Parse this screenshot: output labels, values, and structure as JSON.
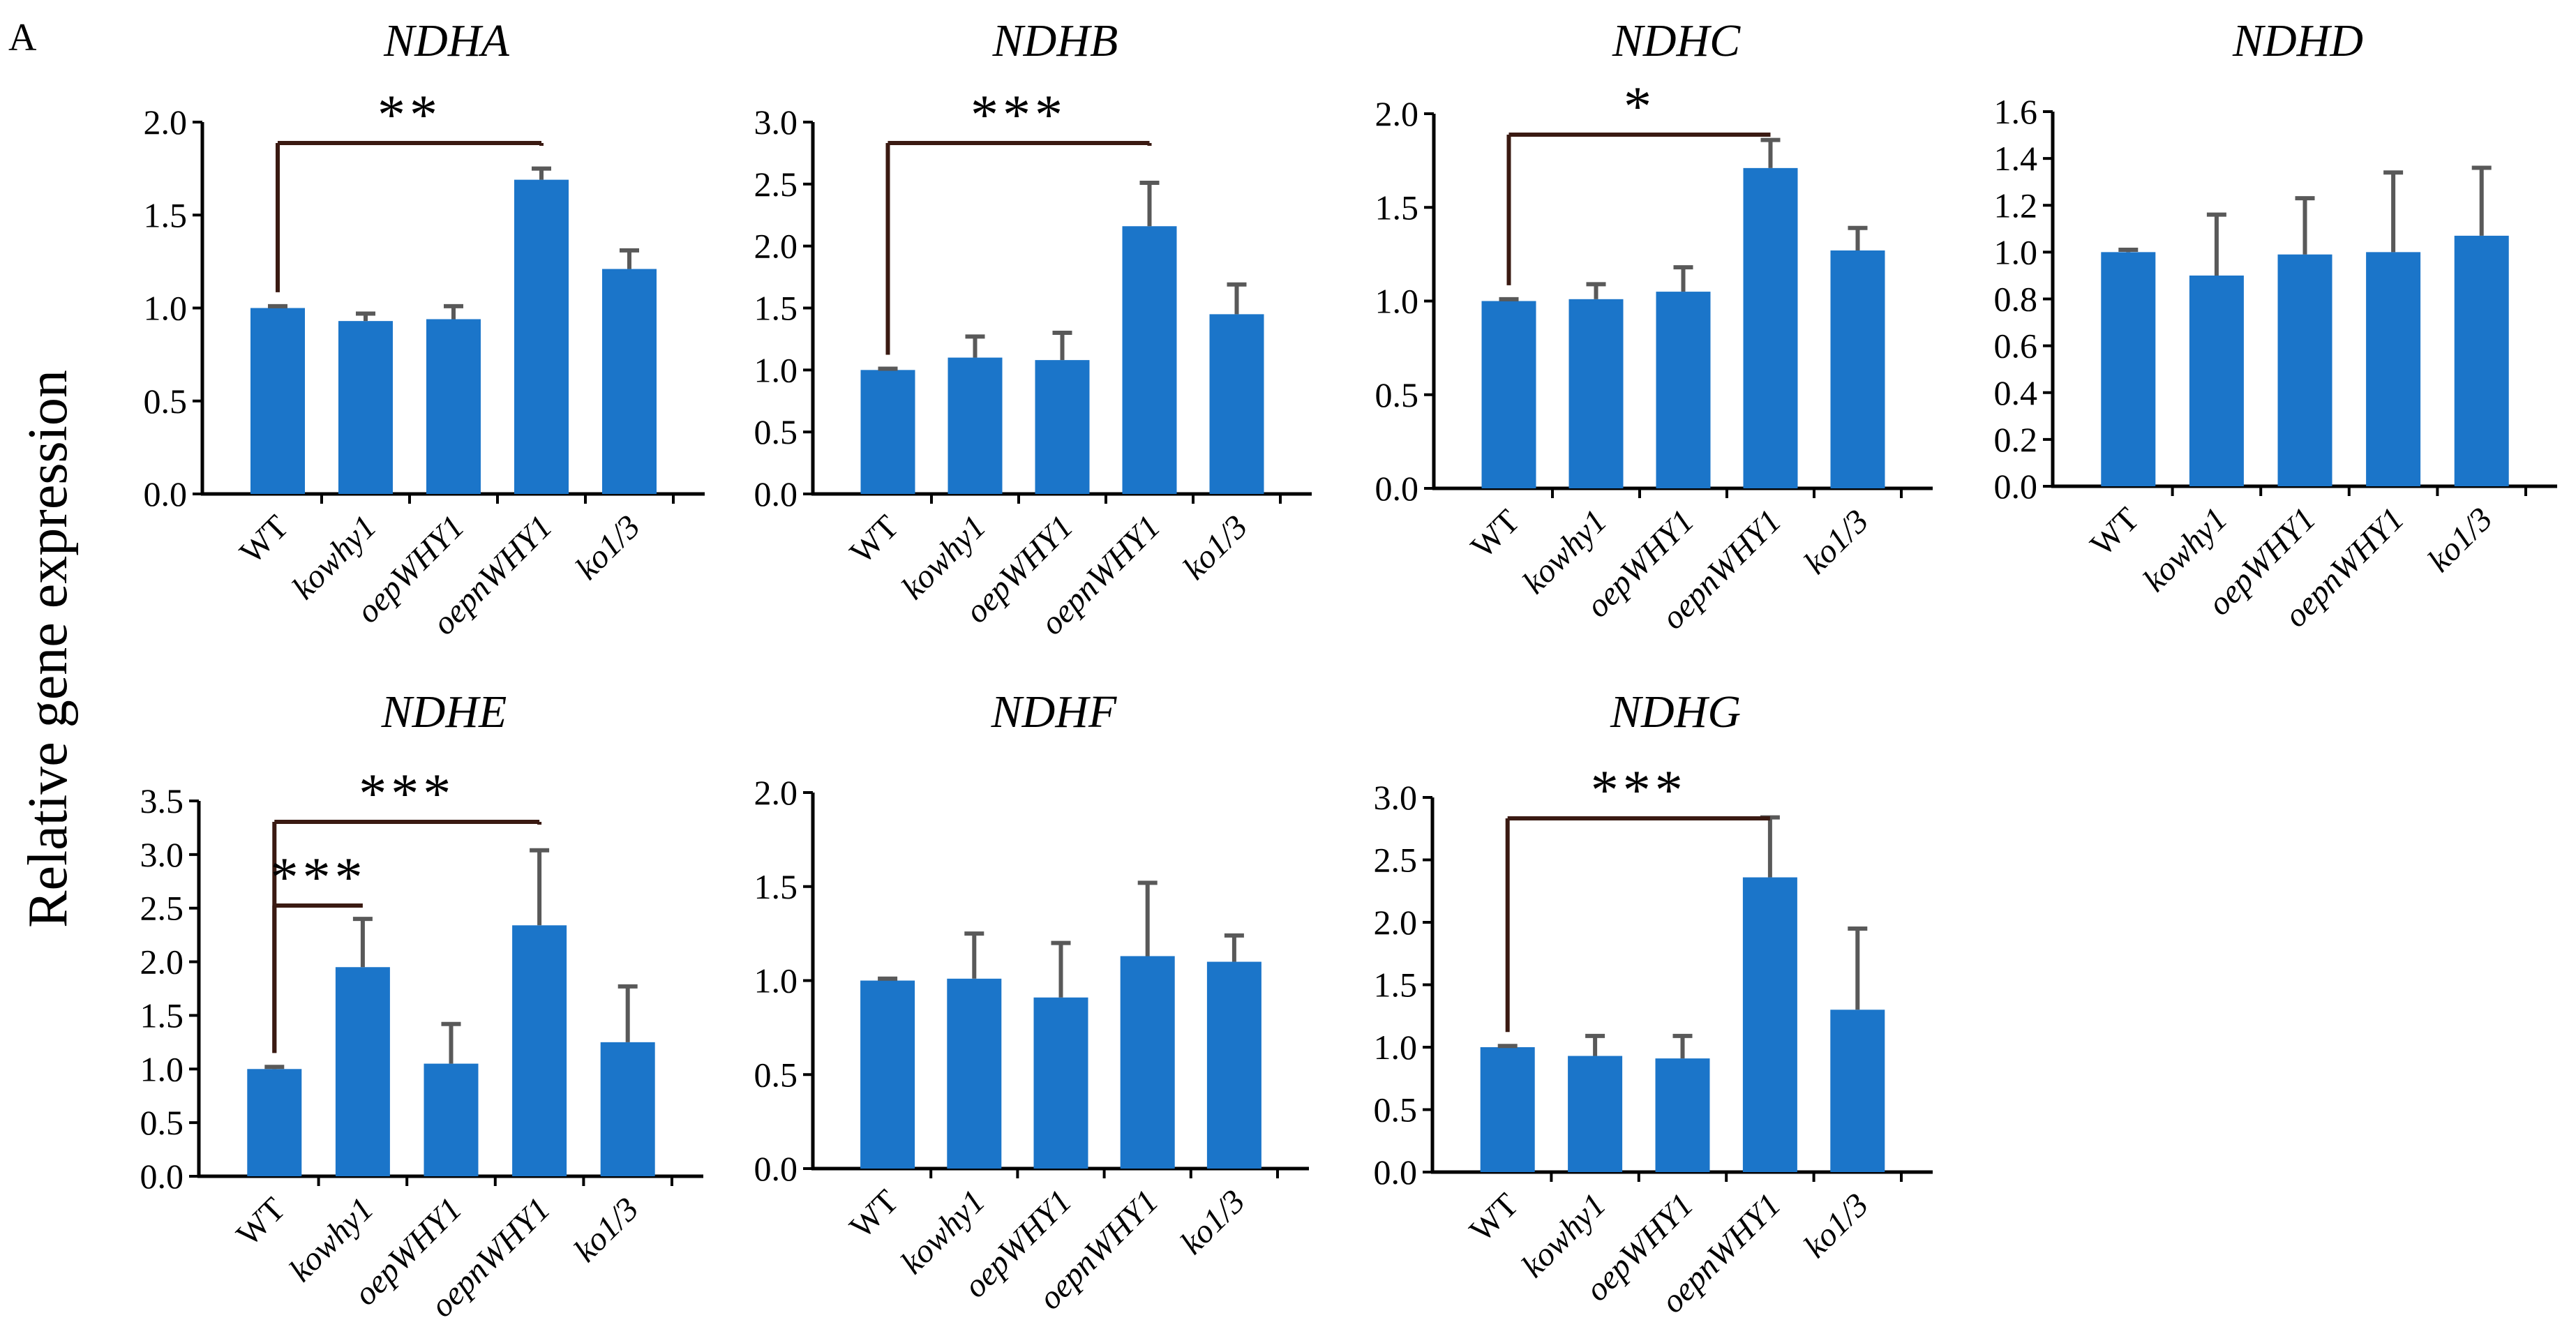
{
  "figure": {
    "panel_letter": "A",
    "y_axis_label": "Relative gene expression",
    "bar_color": "#1b75c9",
    "error_color": "#595959",
    "bracket_color": "#3a1a12"
  },
  "chart_data": [
    {
      "type": "bar",
      "title": "NDHA",
      "categories": [
        "WT",
        "kowhy1",
        "oepWHY1",
        "oepnWHY1",
        "ko1/3"
      ],
      "values": [
        1.0,
        0.93,
        0.94,
        1.69,
        1.21
      ],
      "errors": [
        0.01,
        0.04,
        0.07,
        0.06,
        0.1
      ],
      "ylim": [
        0,
        2.0
      ],
      "yticks": [
        "0.0",
        "0.5",
        "1.0",
        "1.5",
        "2.0"
      ],
      "significance": [
        {
          "from": 0,
          "to": 3,
          "label": "**"
        }
      ]
    },
    {
      "type": "bar",
      "title": "NDHB",
      "categories": [
        "WT",
        "kowhy1",
        "oepWHY1",
        "oepnWHY1",
        "ko1/3"
      ],
      "values": [
        1.0,
        1.1,
        1.08,
        2.16,
        1.45
      ],
      "errors": [
        0.01,
        0.17,
        0.22,
        0.35,
        0.24
      ],
      "ylim": [
        0,
        3.0
      ],
      "yticks": [
        "0.0",
        "0.5",
        "1.0",
        "1.5",
        "2.0",
        "2.5",
        "3.0"
      ],
      "significance": [
        {
          "from": 0,
          "to": 3,
          "label": "***"
        }
      ]
    },
    {
      "type": "bar",
      "title": "NDHC",
      "categories": [
        "WT",
        "kowhy1",
        "oepWHY1",
        "oepnWHY1",
        "ko1/3"
      ],
      "values": [
        1.0,
        1.01,
        1.05,
        1.71,
        1.27
      ],
      "errors": [
        0.01,
        0.08,
        0.13,
        0.15,
        0.12
      ],
      "ylim": [
        0,
        2.0
      ],
      "yticks": [
        "0.0",
        "0.5",
        "1.0",
        "1.5",
        "2.0"
      ],
      "significance": [
        {
          "from": 0,
          "to": 3,
          "label": "*"
        }
      ]
    },
    {
      "type": "bar",
      "title": "NDHD",
      "categories": [
        "WT",
        "kowhy1",
        "oepWHY1",
        "oepnWHY1",
        "ko1/3"
      ],
      "values": [
        1.0,
        0.9,
        0.99,
        1.0,
        1.07
      ],
      "errors": [
        0.01,
        0.26,
        0.24,
        0.34,
        0.29
      ],
      "ylim": [
        0,
        1.6
      ],
      "yticks": [
        "0.0",
        "0.2",
        "0.4",
        "0.6",
        "0.8",
        "1.0",
        "1.2",
        "1.4",
        "1.6"
      ],
      "significance": []
    },
    {
      "type": "bar",
      "title": "NDHE",
      "categories": [
        "WT",
        "kowhy1",
        "oepWHY1",
        "oepnWHY1",
        "ko1/3"
      ],
      "values": [
        1.0,
        1.95,
        1.05,
        2.34,
        1.25
      ],
      "errors": [
        0.02,
        0.45,
        0.37,
        0.7,
        0.52
      ],
      "ylim": [
        0,
        3.5
      ],
      "yticks": [
        "0.0",
        "0.5",
        "1.0",
        "1.5",
        "2.0",
        "2.5",
        "3.0",
        "3.5"
      ],
      "significance": [
        {
          "from": 0,
          "to": 3,
          "label": "***"
        },
        {
          "from": 0,
          "to": 1,
          "label": "***"
        }
      ]
    },
    {
      "type": "bar",
      "title": "NDHF",
      "categories": [
        "WT",
        "kowhy1",
        "oepWHY1",
        "oepnWHY1",
        "ko1/3"
      ],
      "values": [
        1.0,
        1.01,
        0.91,
        1.13,
        1.1
      ],
      "errors": [
        0.01,
        0.24,
        0.29,
        0.39,
        0.14
      ],
      "ylim": [
        0,
        2.0
      ],
      "yticks": [
        "0.0",
        "0.5",
        "1.0",
        "1.5",
        "2.0"
      ],
      "significance": []
    },
    {
      "type": "bar",
      "title": "NDHG",
      "categories": [
        "WT",
        "kowhy1",
        "oepWHY1",
        "oepnWHY1",
        "ko1/3"
      ],
      "values": [
        1.0,
        0.93,
        0.91,
        2.36,
        1.3
      ],
      "errors": [
        0.01,
        0.16,
        0.18,
        0.48,
        0.65
      ],
      "ylim": [
        0,
        3.0
      ],
      "yticks": [
        "0.0",
        "0.5",
        "1.0",
        "1.5",
        "2.0",
        "2.5",
        "3.0"
      ],
      "significance": [
        {
          "from": 0,
          "to": 3,
          "label": "***"
        }
      ]
    }
  ]
}
